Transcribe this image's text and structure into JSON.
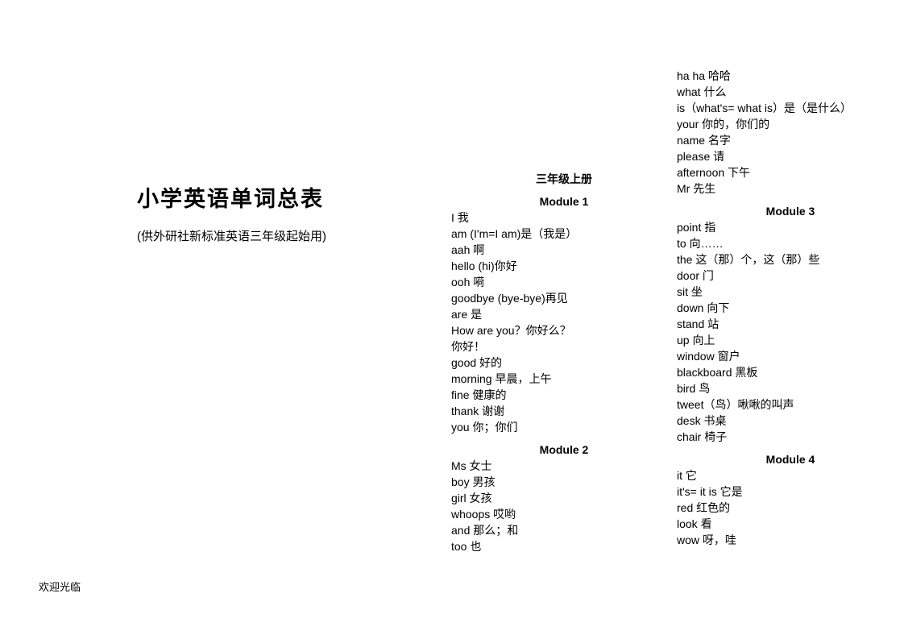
{
  "footer": "欢迎光临",
  "title": "小学英语单词总表",
  "subtitle": "(供外研社新标准英语三年级起始用)",
  "section_header": "三年级上册",
  "modules": {
    "m1": {
      "title": "Module 1",
      "entries": [
        "I 我",
        "am (I'm=I am)是（我是）",
        "aah 啊",
        "hello (hi)你好",
        "ooh 嗬",
        "goodbye (bye-bye)再见",
        "are 是",
        "How are you？你好么？",
        "你好！",
        "good 好的",
        "morning 早晨，上午",
        "fine 健康的",
        "thank 谢谢",
        "you 你；你们"
      ]
    },
    "m2": {
      "title": "Module 2",
      "entries": [
        "Ms 女士",
        "boy 男孩",
        "girl 女孩",
        "whoops 哎哟",
        "and 那么；和",
        "too 也"
      ]
    },
    "m2_cont": {
      "entries": [
        "ha ha 哈哈",
        "what 什么",
        "is（what's= what is）是（是什么）",
        "your 你的，你们的",
        "name 名字",
        "please 请",
        "afternoon 下午",
        "Mr 先生"
      ]
    },
    "m3": {
      "title": "Module 3",
      "entries": [
        "point 指",
        "to 向……",
        "the 这（那）个，这（那）些",
        "door 门",
        "sit 坐",
        "down 向下",
        "stand 站",
        "up 向上",
        "window 窗户",
        "blackboard 黑板",
        "bird 鸟",
        "tweet（鸟）啾啾的叫声",
        "desk 书桌",
        "chair 椅子"
      ]
    },
    "m4": {
      "title": "Module 4",
      "entries": [
        "it 它",
        "it's= it is 它是",
        "red 红色的",
        "look 看",
        "wow 呀，哇"
      ]
    }
  }
}
